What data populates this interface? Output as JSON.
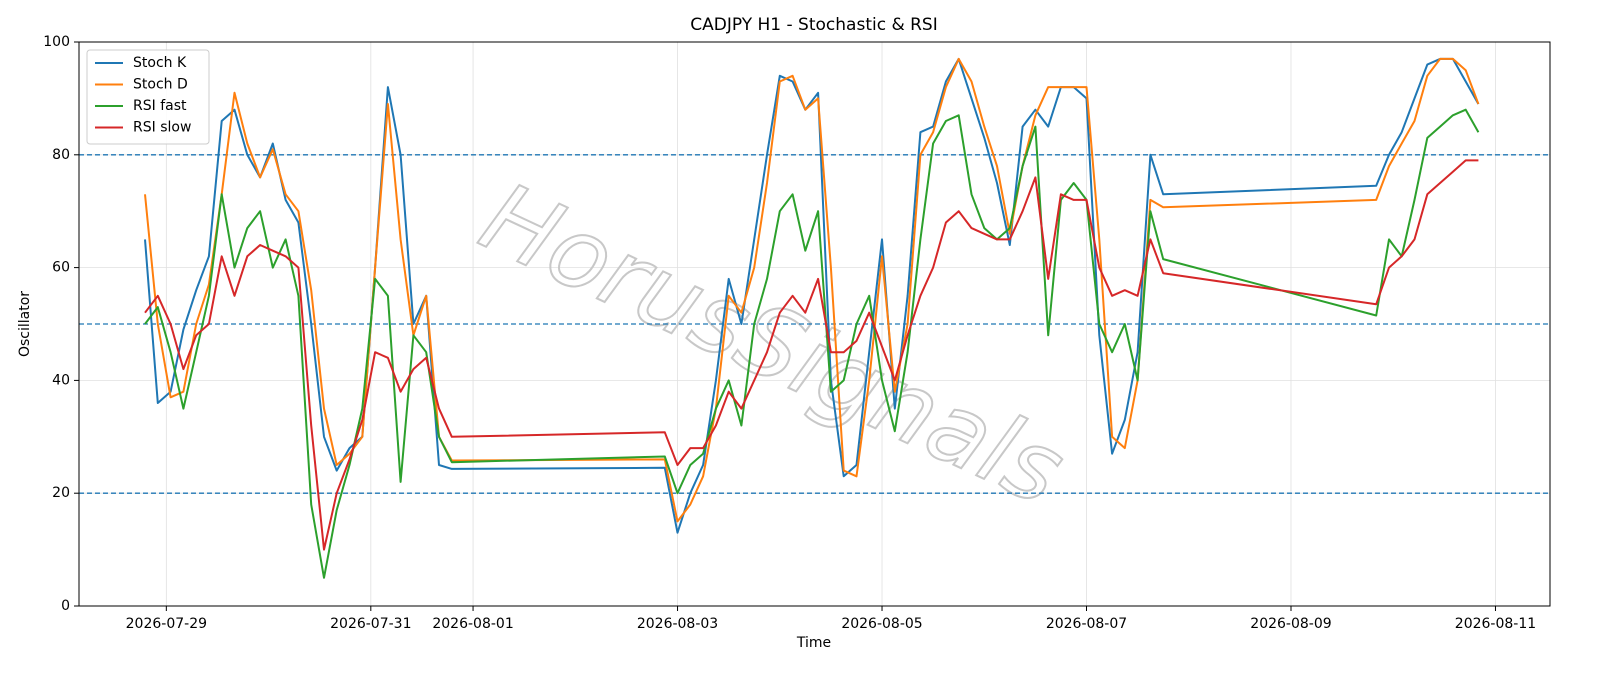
{
  "chart_data": {
    "type": "line",
    "title": "CADJPY H1 - Stochastic & RSI",
    "x_label": "Time",
    "y_label": "Oscillator",
    "watermark": "HorusSignals",
    "x": [
      "2026-07-28 19:00",
      "2026-07-28 22:00",
      "2026-07-29 01:00",
      "2026-07-29 04:00",
      "2026-07-29 07:00",
      "2026-07-29 10:00",
      "2026-07-29 13:00",
      "2026-07-29 16:00",
      "2026-07-29 19:00",
      "2026-07-29 22:00",
      "2026-07-30 01:00",
      "2026-07-30 04:00",
      "2026-07-30 07:00",
      "2026-07-30 10:00",
      "2026-07-30 13:00",
      "2026-07-30 16:00",
      "2026-07-30 19:00",
      "2026-07-30 22:00",
      "2026-07-31 01:00",
      "2026-07-31 04:00",
      "2026-07-31 07:00",
      "2026-07-31 10:00",
      "2026-07-31 13:00",
      "2026-07-31 16:00",
      "2026-07-31 19:00",
      "2026-08-02 21:00",
      "2026-08-03 00:00",
      "2026-08-03 03:00",
      "2026-08-03 06:00",
      "2026-08-03 09:00",
      "2026-08-03 12:00",
      "2026-08-03 15:00",
      "2026-08-03 18:00",
      "2026-08-03 21:00",
      "2026-08-04 00:00",
      "2026-08-04 03:00",
      "2026-08-04 06:00",
      "2026-08-04 09:00",
      "2026-08-04 12:00",
      "2026-08-04 15:00",
      "2026-08-04 18:00",
      "2026-08-04 21:00",
      "2026-08-05 00:00",
      "2026-08-05 03:00",
      "2026-08-05 06:00",
      "2026-08-05 09:00",
      "2026-08-05 12:00",
      "2026-08-05 15:00",
      "2026-08-05 18:00",
      "2026-08-05 21:00",
      "2026-08-06 00:00",
      "2026-08-06 03:00",
      "2026-08-06 06:00",
      "2026-08-06 09:00",
      "2026-08-06 12:00",
      "2026-08-06 15:00",
      "2026-08-06 18:00",
      "2026-08-06 21:00",
      "2026-08-07 00:00",
      "2026-08-07 03:00",
      "2026-08-07 06:00",
      "2026-08-07 09:00",
      "2026-08-07 12:00",
      "2026-08-07 15:00",
      "2026-08-07 18:00",
      "2026-08-09 20:00",
      "2026-08-09 23:00",
      "2026-08-10 02:00",
      "2026-08-10 05:00",
      "2026-08-10 08:00",
      "2026-08-10 11:00",
      "2026-08-10 14:00",
      "2026-08-10 17:00",
      "2026-08-10 20:00"
    ],
    "series": [
      {
        "name": "Stoch K",
        "color": "#1f77b4",
        "values": [
          65,
          36,
          38,
          49,
          56,
          62,
          86,
          88,
          80,
          76,
          82,
          72,
          68,
          50,
          30,
          24,
          28,
          30,
          60,
          92,
          80,
          50,
          55,
          25,
          24.3,
          24.5,
          13,
          20,
          25,
          40,
          58,
          50,
          65,
          80,
          94,
          93,
          88,
          91,
          40,
          23,
          25,
          45,
          65,
          35,
          55,
          84,
          85,
          93,
          97,
          90,
          83,
          75,
          64,
          85,
          88,
          85,
          92,
          92,
          90,
          48,
          27,
          33,
          45,
          80,
          73,
          74.5,
          80,
          84,
          90,
          96,
          97,
          97,
          93,
          89
        ]
      },
      {
        "name": "Stoch D",
        "color": "#ff7f0e",
        "values": [
          73,
          50,
          37,
          38,
          50,
          57,
          73,
          91,
          82,
          76,
          81,
          73,
          70,
          56,
          35,
          25,
          27,
          30,
          60,
          89,
          65,
          48,
          55,
          30,
          25.8,
          26,
          15,
          18,
          23,
          35,
          55,
          52,
          60,
          75,
          93,
          94,
          88,
          90,
          60,
          24,
          23,
          40,
          62,
          38,
          50,
          80,
          84,
          92,
          97,
          93,
          85,
          78,
          66,
          78,
          87,
          92,
          92,
          92,
          92,
          65,
          30,
          28,
          40,
          72,
          70.7,
          72,
          78,
          82,
          86,
          94,
          97,
          97,
          95,
          89
        ]
      },
      {
        "name": "RSI fast",
        "color": "#2ca02c",
        "values": [
          50,
          53,
          45,
          35,
          45,
          55,
          73,
          60,
          67,
          70,
          60,
          65,
          55,
          18,
          5,
          17,
          25,
          35,
          58,
          55,
          22,
          48,
          45,
          30,
          25.5,
          26.5,
          20,
          25,
          27,
          35,
          40,
          32,
          50,
          58,
          70,
          73,
          63,
          70,
          38,
          40,
          50,
          55,
          40,
          31,
          45,
          65,
          82,
          86,
          87,
          73,
          67,
          65,
          67,
          78,
          85,
          48,
          72,
          75,
          72,
          50,
          45,
          50,
          40,
          70,
          61.5,
          51.5,
          65,
          62,
          72,
          83,
          85,
          87,
          88,
          84
        ]
      },
      {
        "name": "RSI slow",
        "color": "#d62728",
        "values": [
          52,
          55,
          50,
          42,
          48,
          50,
          62,
          55,
          62,
          64,
          63,
          62,
          60,
          32,
          10,
          20,
          26,
          33,
          45,
          44,
          38,
          42,
          44,
          35,
          30,
          30.8,
          25,
          28,
          28,
          32,
          38,
          35,
          40,
          45,
          52,
          55,
          52,
          58,
          45,
          45,
          47,
          52,
          46,
          40,
          48,
          55,
          60,
          68,
          70,
          67,
          66,
          65,
          65,
          70,
          76,
          58,
          73,
          72,
          72,
          60,
          55,
          56,
          55,
          65,
          59,
          53.5,
          60,
          62,
          65,
          73,
          75,
          77,
          79,
          79
        ]
      }
    ],
    "xlim": [
      "2026-07-28 03:30",
      "2026-08-11 12:48"
    ],
    "xticks": [
      "2026-07-29",
      "2026-07-31",
      "2026-08-01",
      "2026-08-03",
      "2026-08-05",
      "2026-08-07",
      "2026-08-09",
      "2026-08-11"
    ],
    "ylim": [
      0,
      100
    ],
    "yticks": [
      0,
      20,
      40,
      60,
      80,
      100
    ],
    "hlines": [
      20,
      50,
      80
    ],
    "hline_color": "#1f77b4",
    "grid": true,
    "legend": "upper left"
  }
}
